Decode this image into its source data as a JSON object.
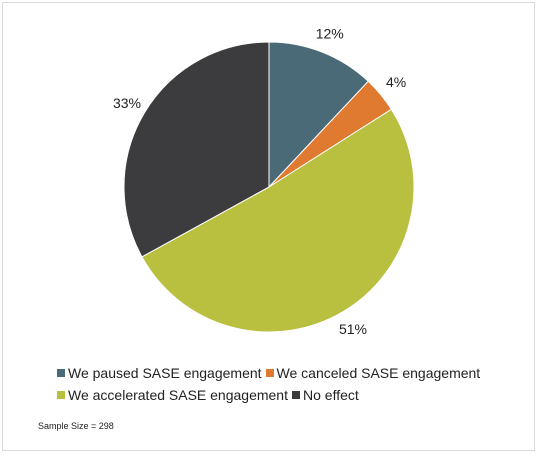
{
  "chart_data": {
    "type": "pie",
    "title": "",
    "slices": [
      {
        "name": "We paused SASE engagement",
        "value": 12,
        "label": "12%",
        "color": "#4a6a78"
      },
      {
        "name": "We canceled SASE engagement",
        "value": 4,
        "label": "4%",
        "color": "#e07a30"
      },
      {
        "name": "We accelerated SASE engagement",
        "value": 51,
        "label": "51%",
        "color": "#b9bf3f"
      },
      {
        "name": "No effect",
        "value": 33,
        "label": "33%",
        "color": "#3c3c3e"
      }
    ],
    "legend_position": "bottom-left"
  },
  "footer": {
    "note": "Sample Size = 298"
  }
}
